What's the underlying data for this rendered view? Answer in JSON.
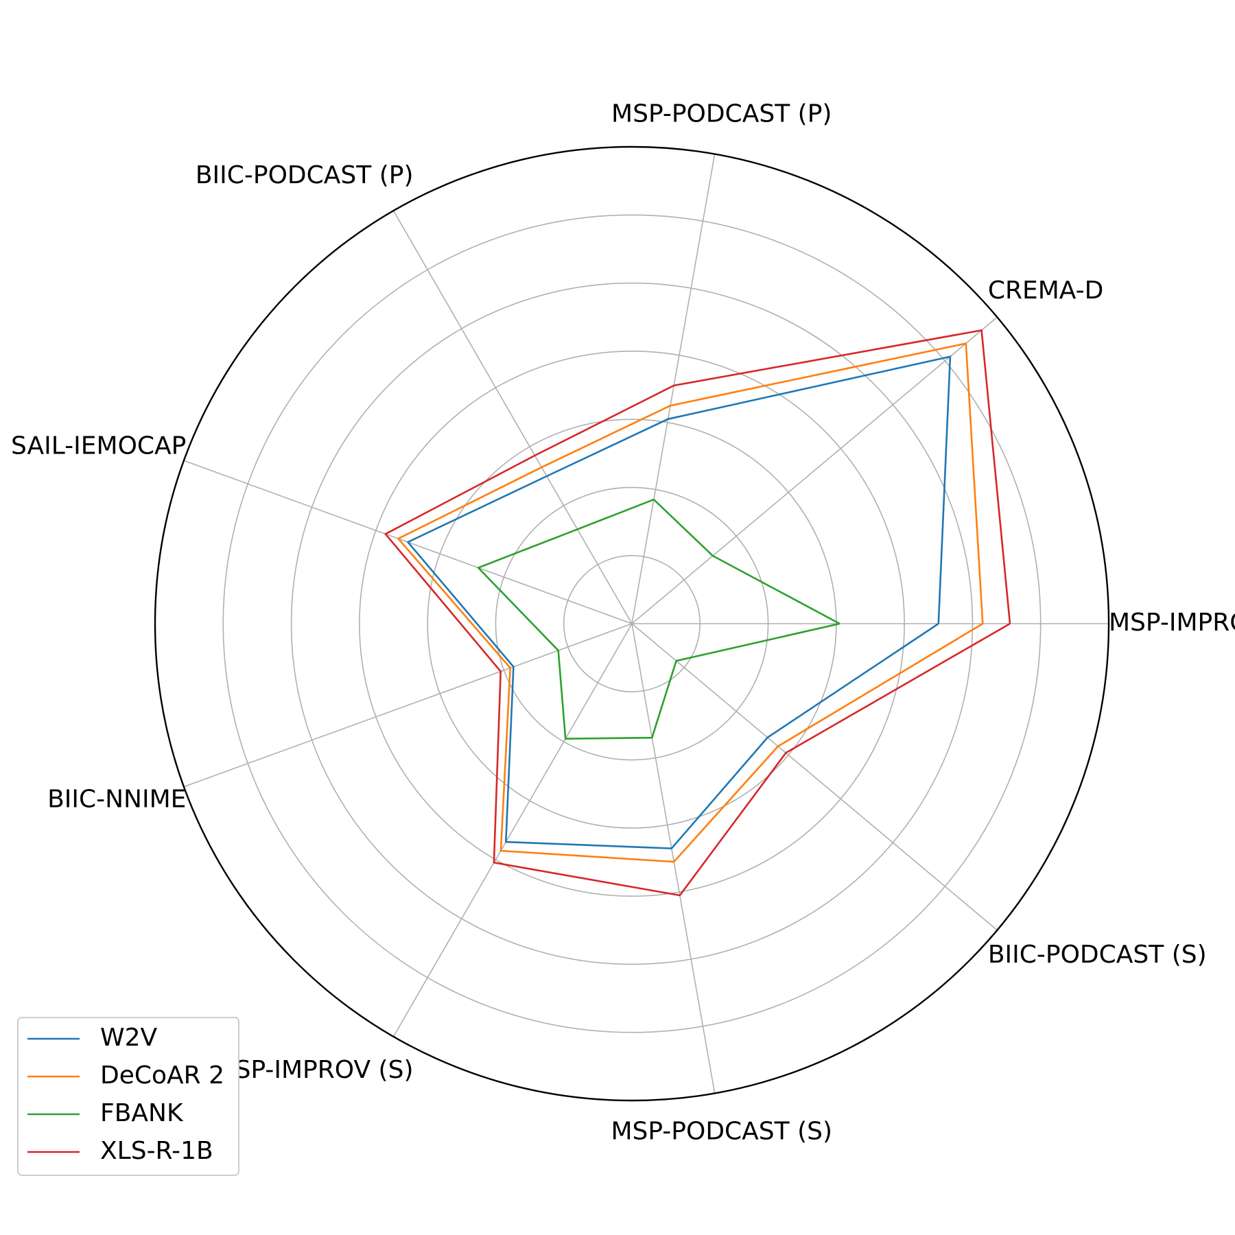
{
  "chart_data": {
    "type": "radar",
    "categories": [
      "MSP-IMPROV (P)",
      "CREMA-D",
      "MSP-PODCAST (P)",
      "BIIC-PODCAST (P)",
      "SAIL-IEMOCAP",
      "BIIC-NNIME",
      "MSP-IMPROV (S)",
      "MSP-PODCAST (S)",
      "BIIC-PODCAST (S)"
    ],
    "rmax": 7,
    "rings": [
      1,
      2,
      3,
      4,
      5,
      6,
      7
    ],
    "grid": true,
    "legend_position": "lower-left",
    "series": [
      {
        "name": "W2V",
        "color": "#1f77b4",
        "values": [
          4.5,
          6.1,
          3.05,
          2.5,
          3.5,
          1.85,
          3.7,
          3.35,
          2.6
        ]
      },
      {
        "name": "DeCoAR 2",
        "color": "#ff7f0e",
        "values": [
          5.15,
          6.4,
          3.25,
          2.65,
          3.65,
          1.9,
          3.85,
          3.55,
          2.8
        ]
      },
      {
        "name": "FBANK",
        "color": "#2ca02c",
        "values": [
          3.05,
          1.55,
          1.85,
          1.6,
          2.4,
          1.15,
          1.95,
          1.7,
          0.85
        ]
      },
      {
        "name": "XLS-R-1B",
        "color": "#d62728",
        "values": [
          5.55,
          6.7,
          3.55,
          2.85,
          3.85,
          2.05,
          4.05,
          4.05,
          2.95
        ]
      }
    ]
  }
}
